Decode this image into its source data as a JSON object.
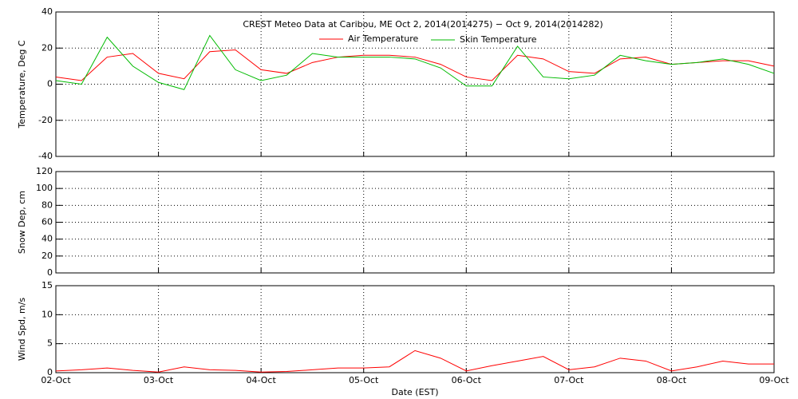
{
  "chart_data": [
    {
      "type": "line",
      "title": "CREST Meteo Data at Caribou, ME   Oct  2, 2014(2014275) − Oct  9, 2014(2014282)",
      "ylabel": "Temperature, Deg C",
      "ylim": [
        -40,
        40
      ],
      "yticks": [
        -40,
        -20,
        0,
        20,
        40
      ],
      "grid": true,
      "x": [
        0,
        0.25,
        0.5,
        0.75,
        1,
        1.25,
        1.5,
        1.75,
        2,
        2.25,
        2.5,
        2.75,
        3,
        3.25,
        3.5,
        3.75,
        4,
        4.25,
        4.5,
        4.75,
        5,
        5.25,
        5.5,
        5.75,
        6,
        6.25,
        6.5,
        6.75,
        7
      ],
      "series": [
        {
          "name": "Air Temperature",
          "color": "#ff0000",
          "values": [
            4,
            2,
            15,
            17,
            6,
            3,
            18,
            19,
            8,
            6,
            12,
            15,
            16,
            16,
            15,
            11,
            4,
            2,
            16,
            14,
            7,
            6,
            14,
            15,
            11,
            12,
            13,
            13,
            10
          ]
        },
        {
          "name": "Skin Temperature",
          "color": "#00bb00",
          "values": [
            2,
            0,
            26,
            10,
            1,
            -3,
            27,
            8,
            2,
            5,
            17,
            15,
            15,
            15,
            14,
            9,
            -1,
            -1,
            21,
            4,
            3,
            5,
            16,
            13,
            11,
            12,
            14,
            11,
            6
          ]
        }
      ]
    },
    {
      "type": "line",
      "ylabel": "Snow Dep, cm",
      "ylim": [
        0,
        120
      ],
      "yticks": [
        0,
        20,
        40,
        60,
        80,
        100,
        120
      ],
      "grid": true,
      "x": [],
      "series": []
    },
    {
      "type": "line",
      "ylabel": "Wind Spd, m/s",
      "xlabel": "Date (EST)",
      "ylim": [
        0,
        15
      ],
      "yticks": [
        0,
        5,
        10,
        15
      ],
      "grid": true,
      "xlim": [
        0,
        7
      ],
      "xticks": [
        {
          "value": 0,
          "label": "02-Oct"
        },
        {
          "value": 1,
          "label": "03-Oct"
        },
        {
          "value": 2,
          "label": "04-Oct"
        },
        {
          "value": 3,
          "label": "05-Oct"
        },
        {
          "value": 4,
          "label": "06-Oct"
        },
        {
          "value": 5,
          "label": "07-Oct"
        },
        {
          "value": 6,
          "label": "08-Oct"
        },
        {
          "value": 7,
          "label": "09-Oct"
        }
      ],
      "x": [
        0,
        0.25,
        0.5,
        0.75,
        1,
        1.25,
        1.5,
        1.75,
        2,
        2.25,
        2.5,
        2.75,
        3,
        3.25,
        3.5,
        3.75,
        4,
        4.25,
        4.5,
        4.75,
        5,
        5.25,
        5.5,
        5.75,
        6,
        6.25,
        6.5,
        6.75,
        7
      ],
      "series": [
        {
          "color": "#ff0000",
          "values": [
            0.3,
            0.5,
            0.8,
            0.4,
            0.1,
            1,
            0.5,
            0.4,
            0.1,
            0.2,
            0.5,
            0.8,
            0.8,
            1,
            3.8,
            2.5,
            0.3,
            1.2,
            2,
            2.8,
            0.5,
            1,
            2.5,
            2,
            0.3,
            1,
            2,
            1.5,
            1.5
          ]
        }
      ]
    }
  ]
}
